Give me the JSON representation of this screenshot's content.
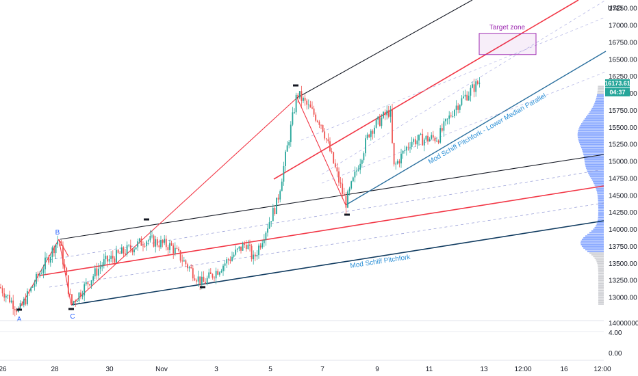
{
  "currency": "USD",
  "price_badge": {
    "value": "16173.61",
    "countdown": "04:37"
  },
  "annotations": {
    "target_zone": "Target zone",
    "pitchfork": "Mod Schiff Pitchfork",
    "lower_median": "Mod Schiff Pitchfork - Lower Median Parallel"
  },
  "pivot_labels": [
    "A",
    "B",
    "C"
  ],
  "colors": {
    "up": "#26a69a",
    "down": "#ef5350",
    "median": "#f23645",
    "outer": "#131722",
    "lower": "#2a6f9e",
    "target": "#9c27b0",
    "volume_profile": "#2962ff"
  },
  "chart_data": {
    "type": "candlestick",
    "y_axis": {
      "ylim": [
        12700,
        17300
      ],
      "ticks": [
        13000,
        13250,
        13500,
        13750,
        14000,
        14250,
        14500,
        14750,
        15000,
        15250,
        15500,
        15750,
        16000,
        16250,
        16500,
        16750,
        17000,
        17250
      ],
      "tick_labels": [
        "13000.00",
        "13250.00",
        "13500.00",
        "13750.00",
        "14000.00",
        "14250.00",
        "14500.00",
        "14750.00",
        "15000.00",
        "15250.00",
        "15500.00",
        "15750.00",
        "16000.00",
        "16250.00",
        "16500.00",
        "16750.00",
        "17000.00",
        "17250.00"
      ]
    },
    "x_axis": {
      "labels": [
        "26",
        "28",
        "30",
        "Nov",
        "3",
        "5",
        "7",
        "9",
        "11",
        "13",
        "12:00",
        "16",
        "12:00"
      ]
    },
    "pane_axis": {
      "labels": [
        "14000000.00",
        "4.00",
        "0.00"
      ]
    },
    "pivots": [
      {
        "label": "A",
        "price": 12800
      },
      {
        "label": "B",
        "price": 13870
      },
      {
        "label": "C",
        "price": 12900
      },
      {
        "label": "",
        "price": 16000
      },
      {
        "label": "",
        "price": 14380
      }
    ],
    "last_price": 16173.61,
    "target_zone": {
      "price_low": 16570,
      "price_high": 16880
    }
  }
}
